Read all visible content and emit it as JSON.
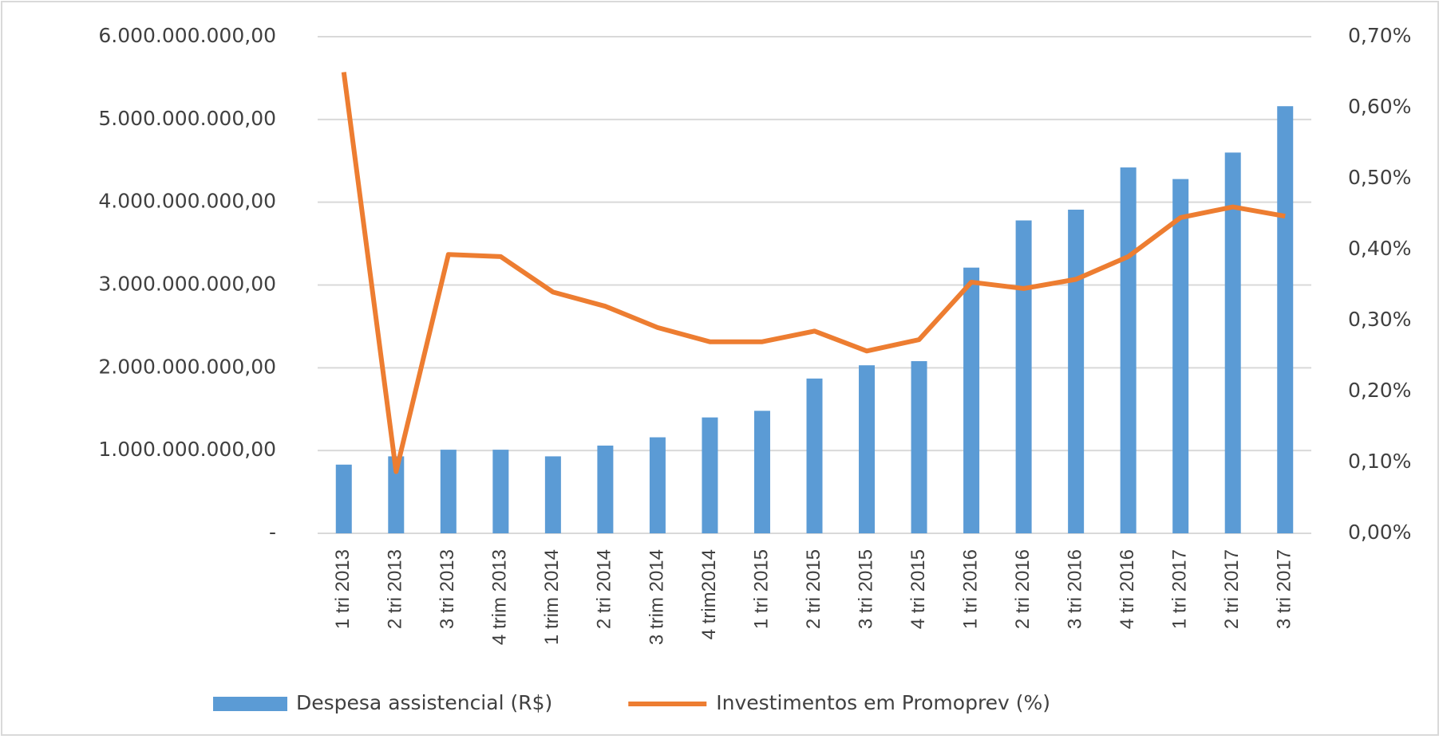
{
  "chart_data": {
    "type": "bar_line",
    "categories": [
      "1 tri 2013",
      "2 tri 2013",
      "3 tri 2013",
      "4 trim 2013",
      "1 trim 2014",
      "2 tri 2014",
      "3 trim 2014",
      "4 trim2014",
      "1 tri 2015",
      "2 tri 2015",
      "3 tri 2015",
      "4 tri 2015",
      "1 tri 2016",
      "2 tri 2016",
      "3 tri 2016",
      "4 tri 2016",
      "1 tri 2017",
      "2 tri 2017",
      "3 tri 2017"
    ],
    "series": [
      {
        "name": "Despesa assistencial (R$)",
        "type": "bar",
        "color": "#5b9bd5",
        "values": [
          830000000,
          930000000,
          1010000000,
          1010000000,
          930000000,
          1060000000,
          1160000000,
          1400000000,
          1480000000,
          1870000000,
          2030000000,
          2080000000,
          3210000000,
          3780000000,
          3910000000,
          4420000000,
          4280000000,
          4600000000,
          5160000000
        ]
      },
      {
        "name": "Investimentos em Promoprev (%)",
        "type": "line",
        "axis": "y2",
        "color": "#ed7d31",
        "values": [
          0.65,
          0.087,
          0.393,
          0.39,
          0.34,
          0.32,
          0.29,
          0.27,
          0.27,
          0.285,
          0.257,
          0.273,
          0.354,
          0.345,
          0.358,
          0.39,
          0.445,
          0.46,
          0.447
        ]
      }
    ],
    "ylim": [
      0,
      6000000000
    ],
    "yticks": [
      {
        "value": 0,
        "label": "-"
      },
      {
        "value": 1000000000,
        "label": "1.000.000.000,00"
      },
      {
        "value": 2000000000,
        "label": "2.000.000.000,00"
      },
      {
        "value": 3000000000,
        "label": "3.000.000.000,00"
      },
      {
        "value": 4000000000,
        "label": "4.000.000.000,00"
      },
      {
        "value": 5000000000,
        "label": "5.000.000.000,00"
      },
      {
        "value": 6000000000,
        "label": "6.000.000.000,00"
      }
    ],
    "y2lim": [
      0,
      0.7
    ],
    "y2ticks": [
      {
        "value": 0,
        "label": "0,00%"
      },
      {
        "value": 0.1,
        "label": "0,10%"
      },
      {
        "value": 0.2,
        "label": "0,20%"
      },
      {
        "value": 0.3,
        "label": "0,30%"
      },
      {
        "value": 0.4,
        "label": "0,40%"
      },
      {
        "value": 0.5,
        "label": "0,50%"
      },
      {
        "value": 0.6,
        "label": "0,60%"
      },
      {
        "value": 0.7,
        "label": "0,70%"
      }
    ],
    "grid": true,
    "legend": "bottom"
  }
}
